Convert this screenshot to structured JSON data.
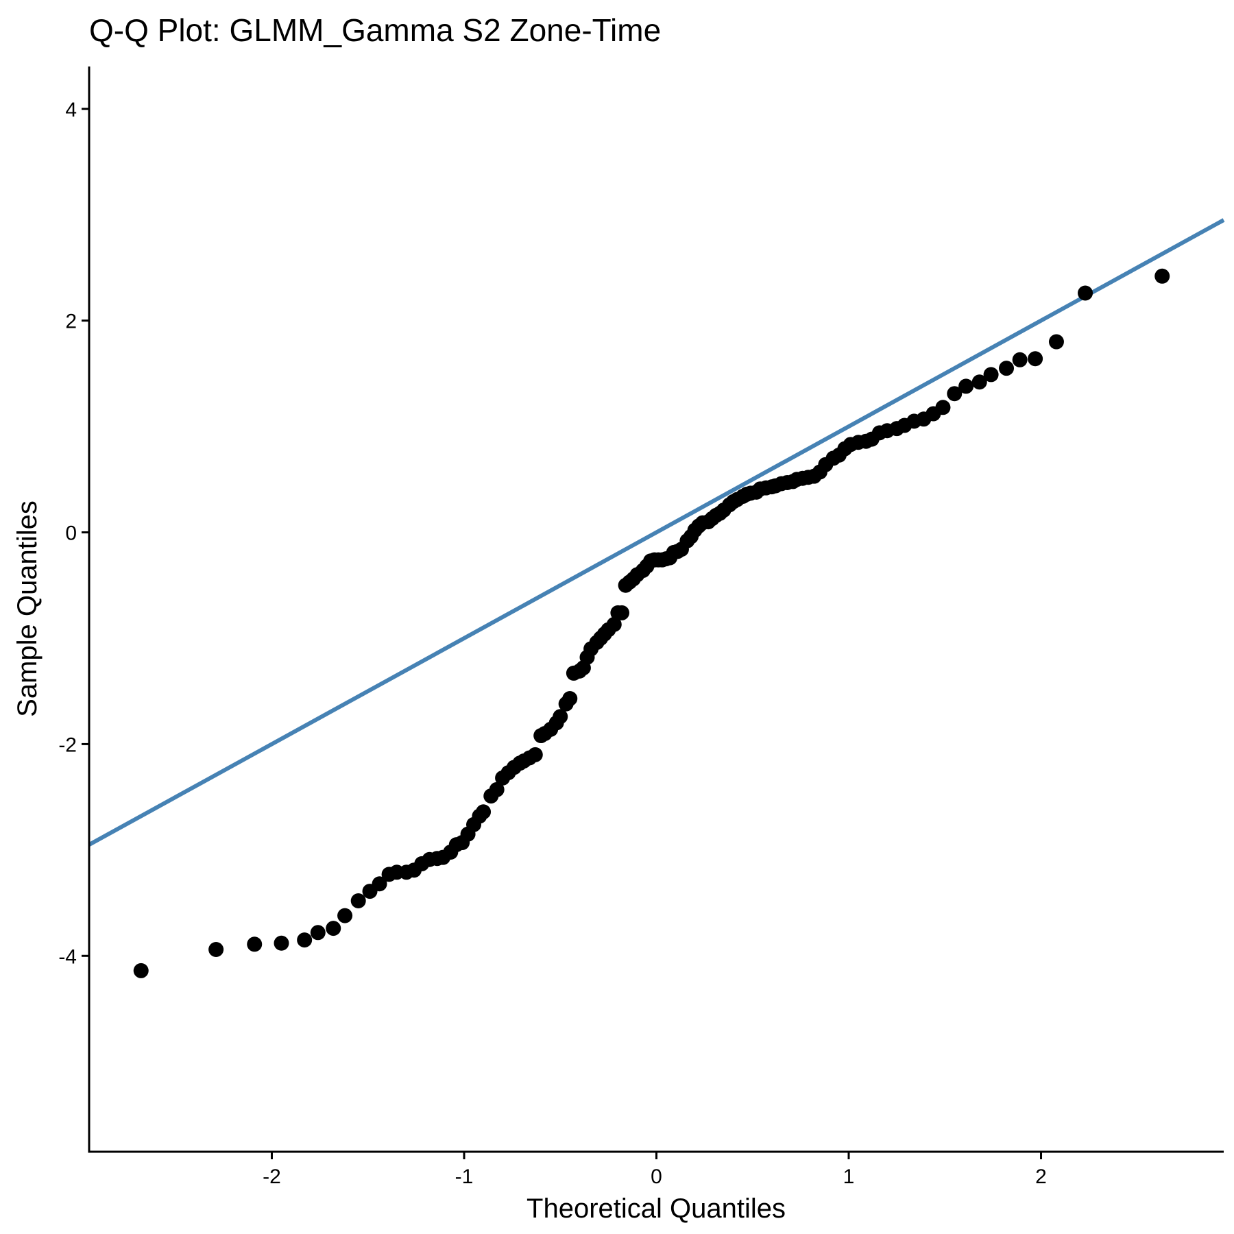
{
  "chart_data": {
    "type": "scatter",
    "title": "Q-Q Plot: GLMM_Gamma S2 Zone-Time",
    "xlabel": "Theoretical Quantiles",
    "ylabel": "Sample Quantiles",
    "xlim": [
      -2.95,
      2.95
    ],
    "ylim": [
      -5.85,
      4.4
    ],
    "x_ticks": [
      -2,
      -1,
      0,
      1,
      2
    ],
    "x_tick_labels": [
      "-2",
      "-1",
      "0",
      "1",
      "2"
    ],
    "y_ticks": [
      -4,
      -2,
      0,
      2,
      4
    ],
    "y_tick_labels": [
      "-4",
      "-2",
      "0",
      "2",
      "4"
    ],
    "grid": false,
    "legend": "none",
    "colors": {
      "points": "#000000",
      "reference_line": "#4682B4",
      "axes": "#000000"
    },
    "reference_line": {
      "intercept": 0,
      "slope": 1
    },
    "series": [
      {
        "points": [
          [
            -2.68,
            -4.14
          ],
          [
            -2.29,
            -3.94
          ],
          [
            -2.09,
            -3.89
          ],
          [
            -1.95,
            -3.88
          ],
          [
            -1.83,
            -3.85
          ],
          [
            -1.76,
            -3.78
          ],
          [
            -1.68,
            -3.74
          ],
          [
            -1.62,
            -3.62
          ],
          [
            -1.55,
            -3.48
          ],
          [
            -1.49,
            -3.39
          ],
          [
            -1.44,
            -3.32
          ],
          [
            -1.39,
            -3.23
          ],
          [
            -1.35,
            -3.21
          ],
          [
            -1.3,
            -3.21
          ],
          [
            -1.26,
            -3.19
          ],
          [
            -1.22,
            -3.13
          ],
          [
            -1.18,
            -3.09
          ],
          [
            -1.14,
            -3.08
          ],
          [
            -1.11,
            -3.07
          ],
          [
            -1.07,
            -3.02
          ],
          [
            -1.04,
            -2.95
          ],
          [
            -1.01,
            -2.93
          ],
          [
            -0.98,
            -2.85
          ],
          [
            -0.95,
            -2.76
          ],
          [
            -0.92,
            -2.68
          ],
          [
            -0.9,
            -2.64
          ],
          [
            -0.86,
            -2.49
          ],
          [
            -0.83,
            -2.43
          ],
          [
            -0.8,
            -2.32
          ],
          [
            -0.77,
            -2.27
          ],
          [
            -0.74,
            -2.22
          ],
          [
            -0.71,
            -2.18
          ],
          [
            -0.69,
            -2.16
          ],
          [
            -0.66,
            -2.13
          ],
          [
            -0.63,
            -2.1
          ],
          [
            -0.6,
            -1.92
          ],
          [
            -0.58,
            -1.9
          ],
          [
            -0.55,
            -1.86
          ],
          [
            -0.52,
            -1.8
          ],
          [
            -0.5,
            -1.74
          ],
          [
            -0.47,
            -1.62
          ],
          [
            -0.45,
            -1.57
          ],
          [
            -0.43,
            -1.33
          ],
          [
            -0.4,
            -1.31
          ],
          [
            -0.38,
            -1.28
          ],
          [
            -0.36,
            -1.18
          ],
          [
            -0.34,
            -1.1
          ],
          [
            -0.31,
            -1.04
          ],
          [
            -0.29,
            -1.0
          ],
          [
            -0.27,
            -0.96
          ],
          [
            -0.25,
            -0.92
          ],
          [
            -0.22,
            -0.87
          ],
          [
            -0.2,
            -0.76
          ],
          [
            -0.18,
            -0.76
          ],
          [
            -0.16,
            -0.5
          ],
          [
            -0.14,
            -0.47
          ],
          [
            -0.12,
            -0.44
          ],
          [
            -0.1,
            -0.4
          ],
          [
            -0.07,
            -0.36
          ],
          [
            -0.05,
            -0.32
          ],
          [
            -0.03,
            -0.27
          ],
          [
            -0.01,
            -0.26
          ],
          [
            0.01,
            -0.26
          ],
          [
            0.03,
            -0.26
          ],
          [
            0.05,
            -0.25
          ],
          [
            0.07,
            -0.24
          ],
          [
            0.09,
            -0.19
          ],
          [
            0.11,
            -0.18
          ],
          [
            0.13,
            -0.16
          ],
          [
            0.16,
            -0.08
          ],
          [
            0.18,
            -0.04
          ],
          [
            0.2,
            0.02
          ],
          [
            0.22,
            0.06
          ],
          [
            0.24,
            0.09
          ],
          [
            0.27,
            0.1
          ],
          [
            0.29,
            0.13
          ],
          [
            0.31,
            0.16
          ],
          [
            0.33,
            0.18
          ],
          [
            0.35,
            0.21
          ],
          [
            0.38,
            0.26
          ],
          [
            0.4,
            0.29
          ],
          [
            0.42,
            0.31
          ],
          [
            0.45,
            0.34
          ],
          [
            0.47,
            0.36
          ],
          [
            0.49,
            0.37
          ],
          [
            0.52,
            0.38
          ],
          [
            0.54,
            0.41
          ],
          [
            0.57,
            0.42
          ],
          [
            0.6,
            0.43
          ],
          [
            0.62,
            0.44
          ],
          [
            0.65,
            0.46
          ],
          [
            0.68,
            0.47
          ],
          [
            0.71,
            0.48
          ],
          [
            0.73,
            0.5
          ],
          [
            0.76,
            0.51
          ],
          [
            0.79,
            0.52
          ],
          [
            0.82,
            0.53
          ],
          [
            0.85,
            0.57
          ],
          [
            0.88,
            0.64
          ],
          [
            0.92,
            0.7
          ],
          [
            0.95,
            0.73
          ],
          [
            0.98,
            0.79
          ],
          [
            1.01,
            0.83
          ],
          [
            1.05,
            0.85
          ],
          [
            1.09,
            0.86
          ],
          [
            1.12,
            0.88
          ],
          [
            1.16,
            0.94
          ],
          [
            1.2,
            0.96
          ],
          [
            1.25,
            0.98
          ],
          [
            1.29,
            1.01
          ],
          [
            1.34,
            1.05
          ],
          [
            1.39,
            1.07
          ],
          [
            1.44,
            1.12
          ],
          [
            1.49,
            1.18
          ],
          [
            1.55,
            1.31
          ],
          [
            1.61,
            1.38
          ],
          [
            1.68,
            1.42
          ],
          [
            1.74,
            1.49
          ],
          [
            1.82,
            1.55
          ],
          [
            1.89,
            1.63
          ],
          [
            1.97,
            1.64
          ],
          [
            2.08,
            1.8
          ],
          [
            2.23,
            2.26
          ],
          [
            2.63,
            2.42
          ]
        ]
      }
    ]
  }
}
